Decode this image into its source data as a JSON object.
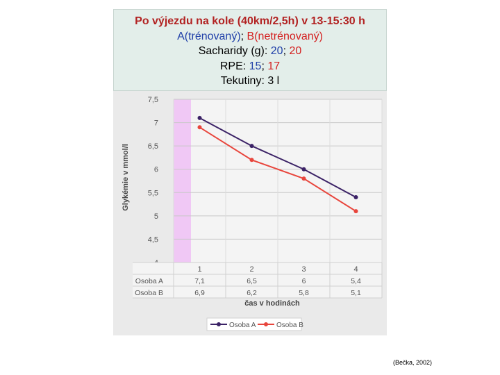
{
  "header": {
    "title": "Po výjezdu na kole (40km/2,5h) v 13-15:30 h",
    "groups": {
      "a_text": "A(trénovaný)",
      "sep": "; ",
      "b_text": "B(netrénovaný)"
    },
    "carbs": {
      "label": "Sacharidy (g): ",
      "a": "20",
      "sep": "; ",
      "b": "20"
    },
    "rpe": {
      "label": "RPE: ",
      "a": "15",
      "sep": "; ",
      "b": "17"
    },
    "fluids": "Tekutiny: 3 l"
  },
  "citation": "(Bečka, 2002)",
  "colors": {
    "series_a": "#3b2266",
    "series_b": "#e8453c",
    "highlight": "#f0c8f5",
    "title": "#b22222",
    "blue": "#1f3fa8",
    "red": "#d42020"
  },
  "chart_data": {
    "type": "line",
    "categories": [
      "1",
      "2",
      "3",
      "4"
    ],
    "ylabel": "Glykémie v mmol/l",
    "xlabel": "čas v hodinách",
    "ylim": [
      4,
      7.5
    ],
    "y_ticks": [
      "4",
      "4,5",
      "5",
      "5,5",
      "6",
      "6,5",
      "7",
      "7,5"
    ],
    "grid": true,
    "legend_position": "bottom",
    "series": [
      {
        "name": "Osoba A",
        "values": [
          7.1,
          6.5,
          6.0,
          5.4
        ],
        "labels": [
          "7,1",
          "6,5",
          "6",
          "5,4"
        ]
      },
      {
        "name": "Osoba B",
        "values": [
          6.9,
          6.2,
          5.8,
          5.1
        ],
        "labels": [
          "6,9",
          "6,2",
          "5,8",
          "5,1"
        ]
      }
    ]
  }
}
